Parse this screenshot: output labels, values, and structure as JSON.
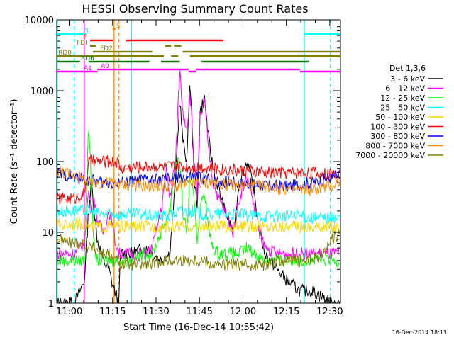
{
  "chart_data": {
    "type": "line",
    "title": "HESSI Observing Summary Count Rates",
    "xlabel": "Start Time (16-Dec-14 10:55:42)",
    "ylabel": "Count Rate (s⁻¹ detector⁻¹)",
    "yscale": "log",
    "ylim": [
      1,
      10000
    ],
    "xlim_minutes": [
      0,
      98
    ],
    "x_ticks": [
      {
        "t": 4.3,
        "label": "11:00"
      },
      {
        "t": 19.3,
        "label": "11:15"
      },
      {
        "t": 34.3,
        "label": "11:30"
      },
      {
        "t": 49.3,
        "label": "11:45"
      },
      {
        "t": 64.3,
        "label": "12:00"
      },
      {
        "t": 79.3,
        "label": "12:15"
      },
      {
        "t": 94.3,
        "label": "12:30"
      }
    ],
    "y_ticks": [
      {
        "v": 1,
        "label": "1"
      },
      {
        "v": 10,
        "label": "10"
      },
      {
        "v": 100,
        "label": "100"
      },
      {
        "v": 1000,
        "label": "1000"
      },
      {
        "v": 10000,
        "label": "10000"
      }
    ],
    "legend_title": "Det 1,3,6",
    "legend_position": "right",
    "series": [
      {
        "name": "3 - 6 keV",
        "color": "#000000",
        "x": [
          0,
          6,
          9.5,
          11,
          12,
          13,
          14,
          16,
          18,
          19,
          20,
          21.5,
          22,
          26,
          30,
          33,
          36,
          39,
          41,
          42.5,
          43.5,
          45,
          46,
          47.5,
          48.5,
          49.5,
          51,
          52.5,
          54,
          56,
          58,
          61,
          63,
          65.5,
          66.5,
          68.5,
          70,
          72,
          76,
          80,
          84,
          88,
          92,
          95,
          98
        ],
        "y": [
          1,
          1,
          2,
          20,
          50,
          20,
          8,
          4,
          3,
          2,
          1.5,
          1,
          5,
          5,
          6,
          5,
          4,
          5,
          50,
          800,
          200,
          100,
          1500,
          60,
          20,
          500,
          800,
          200,
          80,
          40,
          20,
          10,
          50,
          100,
          80,
          30,
          10,
          5,
          3,
          2,
          1.5,
          1.5,
          1.2,
          1,
          1
        ]
      },
      {
        "name": "6 - 12 keV",
        "color": "#ff00ff",
        "x": [
          0,
          6,
          9.5,
          11,
          12,
          13,
          14,
          16,
          18,
          19,
          20,
          21.5,
          22,
          26,
          30,
          33,
          36,
          38,
          39,
          41,
          42.5,
          43.5,
          45,
          46,
          47.5,
          48.5,
          49.5,
          51,
          52.5,
          54,
          56,
          58,
          61,
          63,
          65.5,
          66.5,
          68.5,
          70,
          72,
          76,
          80,
          84,
          88,
          92,
          95,
          98
        ],
        "y": [
          5,
          5,
          7,
          40,
          20,
          30,
          15,
          10,
          20,
          15,
          8,
          5,
          5,
          5,
          5,
          6,
          20,
          80,
          30,
          100,
          2000,
          500,
          300,
          1000,
          100,
          30,
          400,
          700,
          150,
          50,
          30,
          20,
          10,
          30,
          60,
          50,
          20,
          10,
          6,
          5,
          5,
          5,
          5,
          5,
          5,
          5
        ]
      },
      {
        "name": "12 - 25 keV",
        "color": "#00ff00",
        "x": [
          0,
          6,
          9.5,
          11,
          12,
          13,
          14,
          16,
          18,
          19,
          20,
          21.5,
          22,
          26,
          30,
          33,
          36,
          39,
          41,
          42.5,
          43.5,
          45,
          46,
          47.5,
          48.5,
          49.5,
          51,
          52.5,
          54,
          56,
          58,
          61,
          63,
          65.5,
          68.5,
          72,
          76,
          80,
          84,
          88,
          92,
          95,
          98
        ],
        "y": [
          4,
          4,
          4,
          400,
          40,
          5,
          4,
          4,
          4,
          4,
          4,
          4,
          4,
          4,
          5,
          5,
          10,
          20,
          100,
          100,
          20,
          10,
          60,
          30,
          8,
          20,
          40,
          10,
          6,
          5,
          5,
          5,
          5,
          6,
          5,
          4,
          4,
          4,
          4,
          4,
          4,
          4,
          4
        ]
      },
      {
        "name": "25 - 50 keV",
        "color": "#00ffff",
        "x": [
          0,
          6,
          9.5,
          11,
          13,
          16,
          18,
          19,
          20,
          21.5,
          22,
          26,
          30,
          33,
          36,
          39,
          42.5,
          45,
          48.5,
          51,
          54,
          58,
          63,
          68.5,
          72,
          76,
          80,
          84,
          88,
          92,
          95,
          98
        ],
        "y": [
          20,
          20,
          20,
          20,
          19,
          18,
          18,
          18,
          18,
          18,
          18,
          18,
          18,
          17,
          17,
          17,
          20,
          20,
          19,
          18,
          18,
          18,
          18,
          17,
          17,
          17,
          17,
          17,
          16,
          16,
          16,
          16
        ]
      },
      {
        "name": "50 - 100 keV",
        "color": "#ffd700",
        "x": [
          0,
          6,
          9.5,
          11,
          16,
          19,
          21.5,
          22,
          30,
          36,
          42.5,
          48.5,
          54,
          63,
          72,
          80,
          88,
          95,
          98
        ],
        "y": [
          13,
          13,
          13,
          12,
          12,
          12,
          12,
          12,
          12,
          12,
          12,
          12,
          12,
          12,
          12,
          12,
          12,
          12,
          12
        ]
      },
      {
        "name": "100 - 300 keV",
        "color": "#ff0000",
        "x": [
          0,
          6,
          9.5,
          11,
          16,
          19,
          21.5,
          22,
          30,
          36,
          42.5,
          48.5,
          54,
          63,
          72,
          80,
          88,
          95,
          98
        ],
        "y": [
          30,
          30,
          35,
          100,
          100,
          100,
          95,
          80,
          85,
          85,
          85,
          85,
          80,
          75,
          70,
          70,
          70,
          65,
          60
        ]
      },
      {
        "name": "300 - 800 keV",
        "color": "#0000ff",
        "x": [
          0,
          6,
          9.5,
          11,
          16,
          19,
          21.5,
          22,
          30,
          36,
          42.5,
          48.5,
          54,
          63,
          72,
          80,
          88,
          95,
          98
        ],
        "y": [
          70,
          60,
          55,
          55,
          50,
          50,
          50,
          50,
          55,
          55,
          60,
          60,
          55,
          50,
          45,
          45,
          50,
          60,
          65
        ]
      },
      {
        "name": "800 - 7000 keV",
        "color": "#ff8c00",
        "x": [
          0,
          6,
          9.5,
          11,
          16,
          19,
          21.5,
          22,
          30,
          36,
          42.5,
          48.5,
          54,
          63,
          72,
          80,
          88,
          95,
          98
        ],
        "y": [
          75,
          65,
          55,
          50,
          50,
          50,
          48,
          48,
          45,
          45,
          45,
          50,
          50,
          45,
          45,
          40,
          40,
          45,
          55
        ]
      },
      {
        "name": "7000 - 20000 keV",
        "color": "#808000",
        "x": [
          0,
          6,
          9.5,
          11,
          13,
          16,
          18,
          19,
          20,
          21.5,
          22,
          26,
          30,
          33,
          36,
          39,
          42.5,
          45,
          48.5,
          51,
          54,
          58,
          63,
          68.5,
          72,
          76,
          80,
          84,
          88,
          92,
          95,
          98
        ],
        "y": [
          8,
          7,
          7,
          6,
          6,
          5,
          5,
          4,
          4,
          4,
          3.5,
          3.5,
          3.5,
          3.5,
          4,
          4,
          4,
          4,
          4,
          4,
          3.5,
          3.5,
          3.5,
          3.5,
          3.5,
          4,
          4,
          4,
          4,
          5,
          8,
          10
        ]
      }
    ],
    "flag_bars": [
      {
        "label": "N",
        "color": "#00ffff",
        "segments": [
          [
            0,
            10
          ],
          [
            85.5,
            98
          ]
        ]
      },
      {
        "label": "S",
        "color": "#ff8c00",
        "segments": [
          [
            19.3,
            20.3
          ]
        ]
      },
      {
        "label": "F",
        "color": "#ff0000",
        "segments": [
          [
            11.5,
            19.5
          ],
          [
            24,
            57.5
          ]
        ]
      },
      {
        "label": "FDI",
        "color": "#808000",
        "segments": [
          [
            11.5,
            13.5
          ],
          [
            37.5,
            39.5
          ],
          [
            40.5,
            43
          ]
        ]
      },
      {
        "label": "FD2",
        "color": "#808000",
        "segments": [
          [
            12.5,
            33
          ],
          [
            43.5,
            98
          ]
        ]
      },
      {
        "label": "RD0",
        "color": "#808000",
        "segments": [
          [
            0,
            37
          ],
          [
            39.5,
            42
          ],
          [
            46,
            98
          ]
        ]
      },
      {
        "label": "RD6",
        "color": "#008000",
        "segments": [
          [
            0,
            8
          ],
          [
            11,
            32
          ],
          [
            36,
            42.5
          ],
          [
            50,
            87
          ]
        ]
      },
      {
        "label": "A1",
        "color": "#ff00ff",
        "segments": [
          [
            0,
            10
          ],
          [
            10,
            14
          ],
          [
            45.5,
            48
          ],
          [
            84,
            98
          ]
        ]
      },
      {
        "label": "A0",
        "color": "#ff00ff",
        "segments": [
          [
            14,
            45.5
          ],
          [
            48,
            84
          ]
        ]
      }
    ],
    "vertical_lines": [
      {
        "t": 0.2,
        "color": "#00ffff",
        "style": "solid"
      },
      {
        "t": 6,
        "color": "#00ffff",
        "style": "dashed"
      },
      {
        "t": 9.5,
        "color": "#ff00ff",
        "style": "solid"
      },
      {
        "t": 19.8,
        "color": "#ff8c00",
        "style": "solid"
      },
      {
        "t": 21.5,
        "color": "#ff8c00",
        "style": "dashed"
      },
      {
        "t": 25.8,
        "color": "#00ffff",
        "style": "solid"
      },
      {
        "t": 85.5,
        "color": "#00ffff",
        "style": "solid"
      },
      {
        "t": 94.5,
        "color": "#00ffff",
        "style": "dashed"
      }
    ]
  },
  "footer_date": "16-Dec-2014 18:13"
}
